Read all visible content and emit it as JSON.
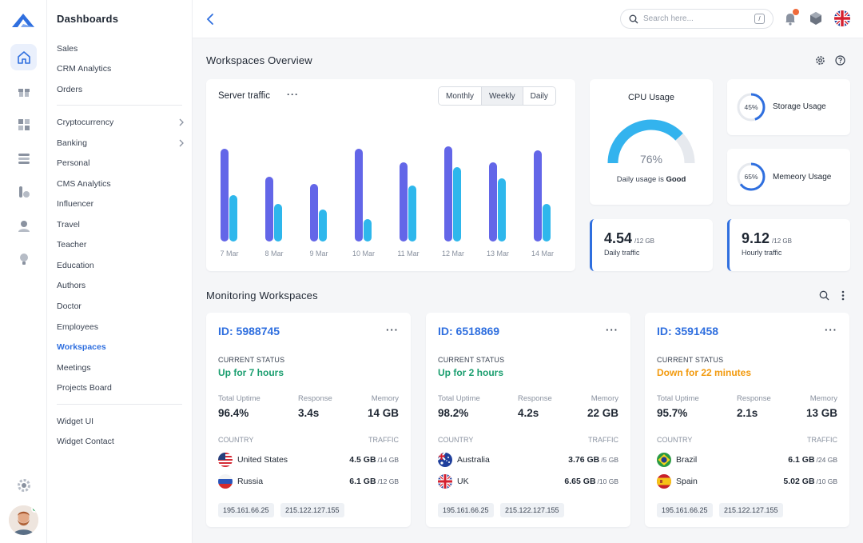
{
  "nav": {
    "section_title": "Dashboards",
    "items_group1": [
      "Sales",
      "CRM Analytics",
      "Orders"
    ],
    "items_group2": [
      "Cryptocurrency",
      "Banking",
      "Personal",
      "CMS Analytics",
      "Influencer",
      "Travel",
      "Teacher",
      "Education",
      "Authors",
      "Doctor",
      "Employees",
      "Workspaces",
      "Meetings",
      "Projects Board"
    ],
    "items_group3": [
      "Widget UI",
      "Widget Contact"
    ],
    "active_item": "Workspaces",
    "rail_icons": [
      "home-icon",
      "gift-icon",
      "grid-icon",
      "layers-icon",
      "tools-icon",
      "user-icon",
      "bulb-icon",
      "settings-icon"
    ]
  },
  "topbar": {
    "search_placeholder": "Search here...",
    "search_shortcut": "/",
    "icons": [
      "back-chevron-icon",
      "search-icon",
      "bell-icon",
      "cube-icon",
      "uk-flag-icon"
    ]
  },
  "overview": {
    "title": "Workspaces Overview",
    "server_traffic": {
      "title": "Server traffic",
      "periods": [
        "Monthly",
        "Weekly",
        "Daily"
      ],
      "active_period": "Weekly"
    },
    "cpu": {
      "title": "CPU Usage",
      "value": "76%",
      "percent": 76,
      "caption_prefix": "Daily usage is",
      "caption_status": "Good"
    },
    "storage": {
      "label": "Storage Usage",
      "value": "45%",
      "percent": 45
    },
    "memory": {
      "label": "Memeory Usage",
      "value": "65%",
      "percent": 65
    },
    "daily_traffic": {
      "value": "4.54",
      "unit": "/12 GB",
      "label": "Daily traffic"
    },
    "hourly_traffic": {
      "value": "9.12",
      "unit": "/12 GB",
      "label": "Hourly traffic"
    }
  },
  "chart_data": {
    "type": "bar",
    "categories": [
      "7 Mar",
      "8 Mar",
      "9 Mar",
      "10 Mar",
      "11 Mar",
      "12 Mar",
      "13 Mar",
      "14 Mar"
    ],
    "series": [
      {
        "values": [
          100,
          70,
          62,
          100,
          85,
          102,
          85,
          98
        ]
      },
      {
        "values": [
          50,
          40,
          34,
          24,
          60,
          80,
          68,
          40
        ]
      }
    ],
    "ylim": [
      0,
      110
    ],
    "grid": false,
    "colors": [
      "#6366e8",
      "#2eb7ec"
    ]
  },
  "monitoring": {
    "title": "Monitoring Workspaces",
    "labels": {
      "current_status": "CURRENT STATUS",
      "total_uptime": "Total Uptime",
      "response": "Response",
      "memory": "Memory",
      "country": "COUNTRY",
      "traffic": "TRAFFIC"
    },
    "workspaces": [
      {
        "id": "ID: 5988745",
        "status": "Up for 7 hours",
        "status_color": "#1a9e6f",
        "uptime": "96.4%",
        "response": "3.4s",
        "memory": "14 GB",
        "countries": [
          {
            "name": "United States",
            "flag": "us-flag-icon",
            "traffic": "4.5 GB",
            "total": "/14 GB"
          },
          {
            "name": "Russia",
            "flag": "ru-flag-icon",
            "traffic": "6.1 GB",
            "total": "/12 GB"
          }
        ],
        "ips": [
          "195.161.66.25",
          "215.122.127.155"
        ]
      },
      {
        "id": "ID: 6518869",
        "status": "Up for 2 hours",
        "status_color": "#1a9e6f",
        "uptime": "98.2%",
        "response": "4.2s",
        "memory": "22 GB",
        "countries": [
          {
            "name": "Australia",
            "flag": "au-flag-icon",
            "traffic": "3.76 GB",
            "total": "/5 GB"
          },
          {
            "name": "UK",
            "flag": "uk-flag-icon",
            "traffic": "6.65 GB",
            "total": "/10 GB"
          }
        ],
        "ips": [
          "195.161.66.25",
          "215.122.127.155"
        ]
      },
      {
        "id": "ID: 3591458",
        "status": "Down for 22 minutes",
        "status_color": "#f29a0e",
        "uptime": "95.7%",
        "response": "2.1s",
        "memory": "13 GB",
        "countries": [
          {
            "name": "Brazil",
            "flag": "br-flag-icon",
            "traffic": "6.1 GB",
            "total": "/24 GB"
          },
          {
            "name": "Spain",
            "flag": "es-flag-icon",
            "traffic": "5.02 GB",
            "total": "/10 GB"
          }
        ],
        "ips": [
          "195.161.66.25",
          "215.122.127.155"
        ]
      }
    ]
  }
}
